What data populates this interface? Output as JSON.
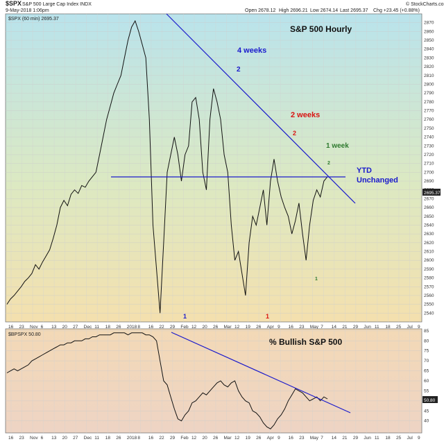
{
  "header": {
    "symbol": "$SPX",
    "description": "S&P 500 Large Cap Index INDX",
    "date": "9-May-2018 1:06pm",
    "open": "Open 2678.12",
    "high": "High 2696.21",
    "low": "Low 2674.14",
    "last": "Last 2695.37",
    "change": "Chg +23.45 (+0.88%)",
    "credit": "© StockCharts.com"
  },
  "chart_data": [
    {
      "type": "line",
      "series_label": "$SPX (60 min) 2695.37",
      "title": "S&P 500 Hourly",
      "price_box": "2695.37",
      "ylim": [
        2530,
        2880
      ],
      "ytick_labels": [
        "2540",
        "2550",
        "2560",
        "2570",
        "2580",
        "2590",
        "2600",
        "2610",
        "2620",
        "2630",
        "2640",
        "2650",
        "2660",
        "2670",
        "2680",
        "2690",
        "2700",
        "2710",
        "2720",
        "2730",
        "2740",
        "2750",
        "2760",
        "2770",
        "2780",
        "2790",
        "2800",
        "2810",
        "2820",
        "2830",
        "2840",
        "2850",
        "2860",
        "2870"
      ],
      "xtick_labels": [
        "16",
        "23",
        "Nov",
        "6",
        "13",
        "20",
        "27",
        "Dec",
        "11",
        "18",
        "26",
        "2018",
        "8",
        "16",
        "22",
        "29",
        "Feb",
        "12",
        "20",
        "26",
        "Mar",
        "12",
        "19",
        "26",
        "Apr",
        "9",
        "16",
        "23",
        "May",
        "7",
        "14",
        "21",
        "29",
        "Jun",
        "11",
        "18",
        "25",
        "Jul",
        "9"
      ],
      "series": [
        {
          "values": [
            2550,
            2556,
            2560,
            2565,
            2570,
            2576,
            2580,
            2585,
            2595,
            2590,
            2598,
            2605,
            2612,
            2625,
            2640,
            2660,
            2668,
            2662,
            2675,
            2680,
            2676,
            2685,
            2683,
            2690,
            2695,
            2700,
            2720,
            2740,
            2760,
            2775,
            2790,
            2800,
            2810,
            2830,
            2850,
            2865,
            2872,
            2860,
            2845,
            2830,
            2760,
            2640,
            2590,
            2540,
            2620,
            2700,
            2720,
            2740,
            2720,
            2690,
            2720,
            2730,
            2780,
            2785,
            2760,
            2700,
            2680,
            2760,
            2795,
            2780,
            2760,
            2720,
            2700,
            2640,
            2600,
            2610,
            2585,
            2560,
            2620,
            2650,
            2640,
            2660,
            2680,
            2640,
            2690,
            2715,
            2690,
            2672,
            2660,
            2650,
            2630,
            2645,
            2665,
            2630,
            2600,
            2640,
            2668,
            2680,
            2672,
            2690,
            2695
          ]
        }
      ],
      "annotations": {
        "resistance": "4 weeks",
        "wave_a": "2",
        "mid_label": "2 weeks",
        "wave_b": "2",
        "short_label": "1 week",
        "wave_c": "2",
        "ytd_line1": "YTD",
        "ytd_line2": "Unchanged",
        "low_a": "1",
        "low_b": "1",
        "low_c": "1"
      }
    },
    {
      "type": "line",
      "series_label": "$BPSPX 50.80",
      "title": "% Bullish S&P 500",
      "price_box": "50.80",
      "ylim": [
        34,
        86
      ],
      "ytick_labels": [
        "40",
        "45",
        "50",
        "55",
        "60",
        "65",
        "70",
        "75",
        "80",
        "85"
      ],
      "xtick_labels": [
        "16",
        "23",
        "Nov",
        "6",
        "13",
        "20",
        "27",
        "Dec",
        "11",
        "18",
        "26",
        "2018",
        "8",
        "16",
        "22",
        "29",
        "Feb",
        "12",
        "20",
        "26",
        "Mar",
        "12",
        "19",
        "26",
        "Apr",
        "9",
        "16",
        "23",
        "May",
        "7",
        "14",
        "21",
        "29",
        "Jun",
        "11",
        "18",
        "25",
        "Jul",
        "9"
      ],
      "series": [
        {
          "values": [
            64,
            65,
            66,
            65,
            66,
            67,
            68,
            70,
            71,
            72,
            73,
            74,
            75,
            76,
            77,
            78,
            78,
            79,
            79,
            80,
            80,
            80,
            81,
            81,
            82,
            82,
            83,
            83,
            83,
            83,
            84,
            84,
            84,
            84,
            83,
            84,
            84,
            84,
            84,
            83,
            83,
            82,
            80,
            70,
            60,
            58,
            52,
            46,
            41,
            40,
            43,
            45,
            49,
            50,
            52,
            54,
            53,
            55,
            57,
            59,
            60,
            58,
            57,
            59,
            60,
            55,
            52,
            50,
            49,
            45,
            44,
            42,
            39,
            37,
            36,
            38,
            41,
            43,
            46,
            50,
            53,
            56,
            55,
            54,
            52,
            50,
            51,
            52,
            50,
            52,
            51
          ]
        }
      ]
    }
  ]
}
